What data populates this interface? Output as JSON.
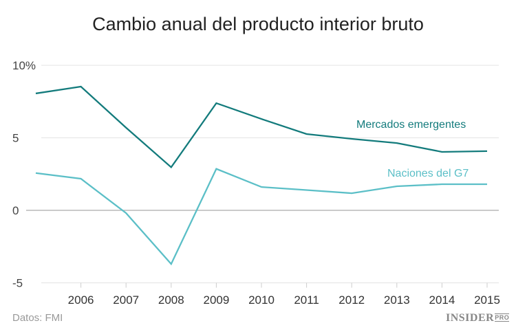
{
  "chart_data": {
    "type": "line",
    "title": "Cambio anual del producto interior bruto",
    "x": [
      2005,
      2006,
      2007,
      2008,
      2009,
      2010,
      2011,
      2012,
      2013,
      2014,
      2015
    ],
    "x_tick_labels": [
      "2006",
      "2007",
      "2008",
      "2009",
      "2010",
      "2011",
      "2012",
      "2013",
      "2014",
      "2015"
    ],
    "y_tick_labels": [
      "10%",
      "5",
      "0",
      "-5"
    ],
    "ylim": [
      -5,
      10
    ],
    "grid": true,
    "series": [
      {
        "name": "Mercados emergentes",
        "color": "#137b7c",
        "values": [
          8.06,
          8.53,
          5.7,
          2.97,
          7.39,
          6.3,
          5.26,
          4.93,
          4.64,
          4.03,
          4.08
        ]
      },
      {
        "name": "Naciones del G7",
        "color": "#5bbfc7",
        "values": [
          2.57,
          2.18,
          -0.19,
          -3.7,
          2.86,
          1.61,
          1.4,
          1.18,
          1.66,
          1.8,
          1.8
        ]
      }
    ]
  },
  "source": "Datos: FMI",
  "logo": {
    "main": "INSIDER",
    "suffix": "PRO"
  }
}
